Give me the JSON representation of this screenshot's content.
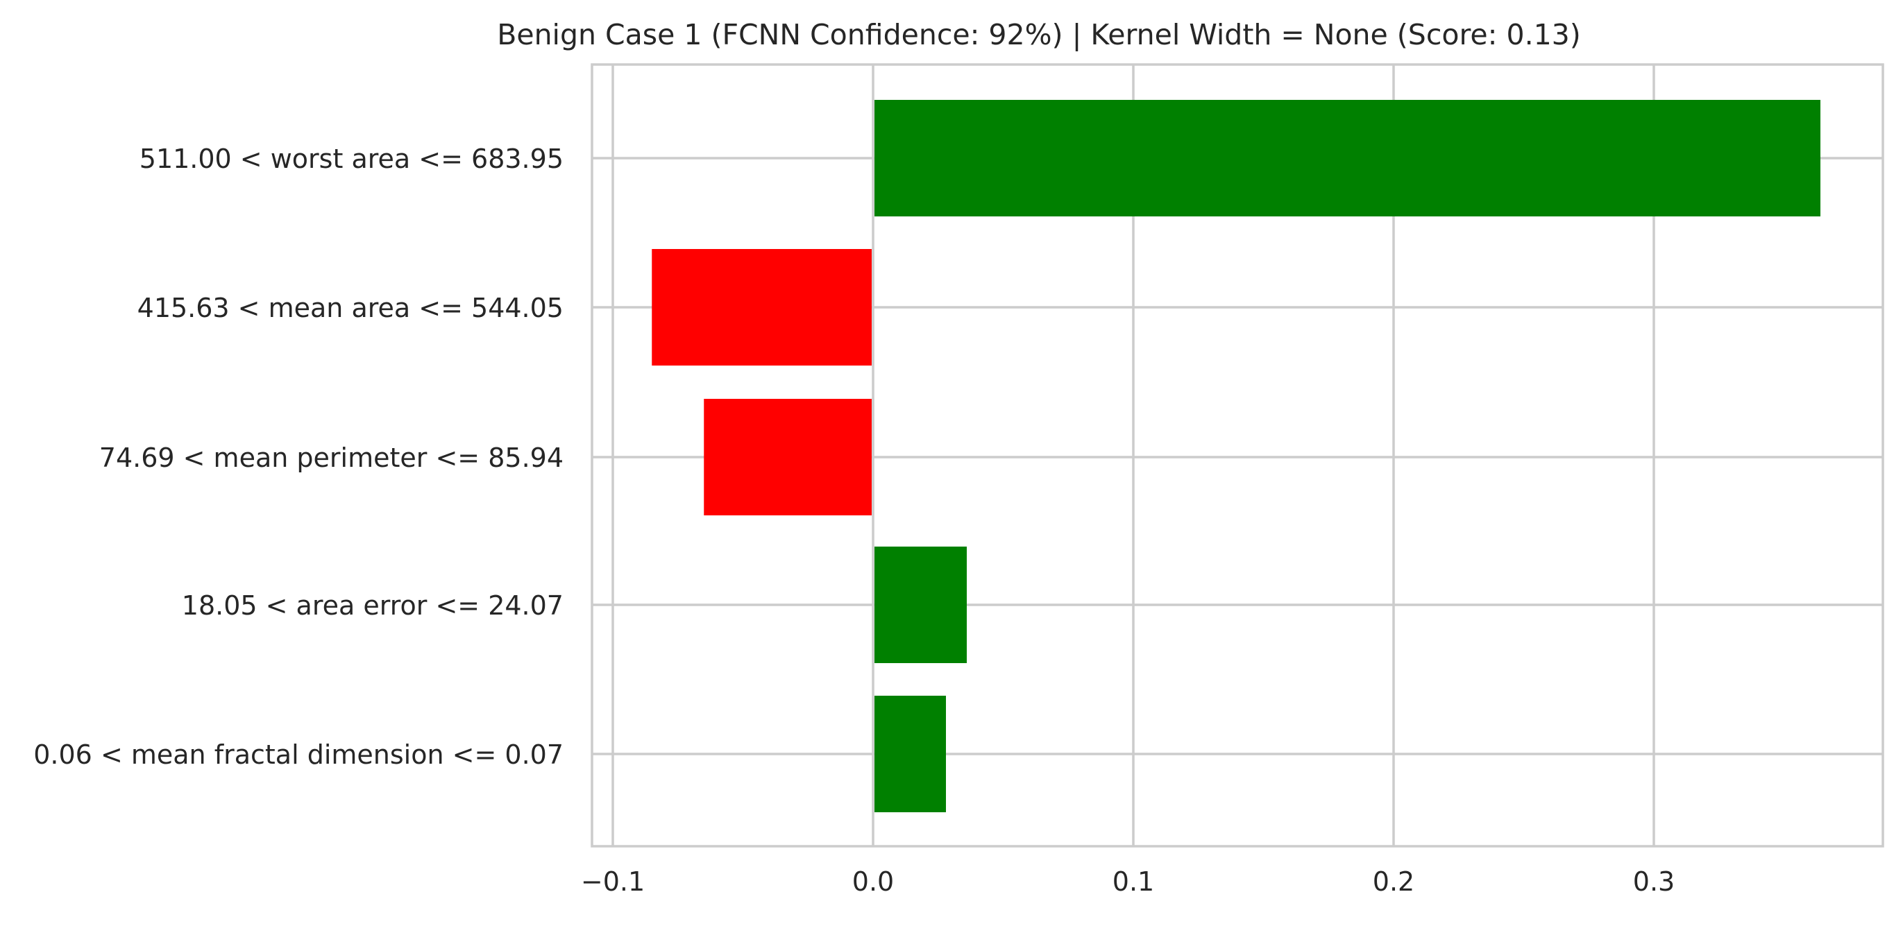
{
  "chart_data": {
    "type": "bar",
    "orientation": "horizontal",
    "title": "Benign Case 1 (FCNN Confidence: 92%) | Kernel Width = None (Score: 0.13)",
    "xlabel": "",
    "ylabel": "",
    "categories": [
      "511.00 < worst area <= 683.95",
      "415.63 < mean area <= 544.05",
      "74.69 < mean perimeter <= 85.94",
      "18.05 < area error <= 24.07",
      "0.06 < mean fractal dimension <= 0.07"
    ],
    "values": [
      0.364,
      -0.085,
      -0.065,
      0.036,
      0.028
    ],
    "xlim": [
      -0.108,
      0.388
    ],
    "xticks": [
      -0.1,
      0.0,
      0.1,
      0.2,
      0.3
    ],
    "xtick_labels": [
      "−0.1",
      "0.0",
      "0.1",
      "0.2",
      "0.3"
    ],
    "colors": {
      "positive": "#008000",
      "negative": "#ff0000",
      "grid": "#cccccc",
      "text": "#262626"
    },
    "grid": true,
    "legend": "none"
  }
}
